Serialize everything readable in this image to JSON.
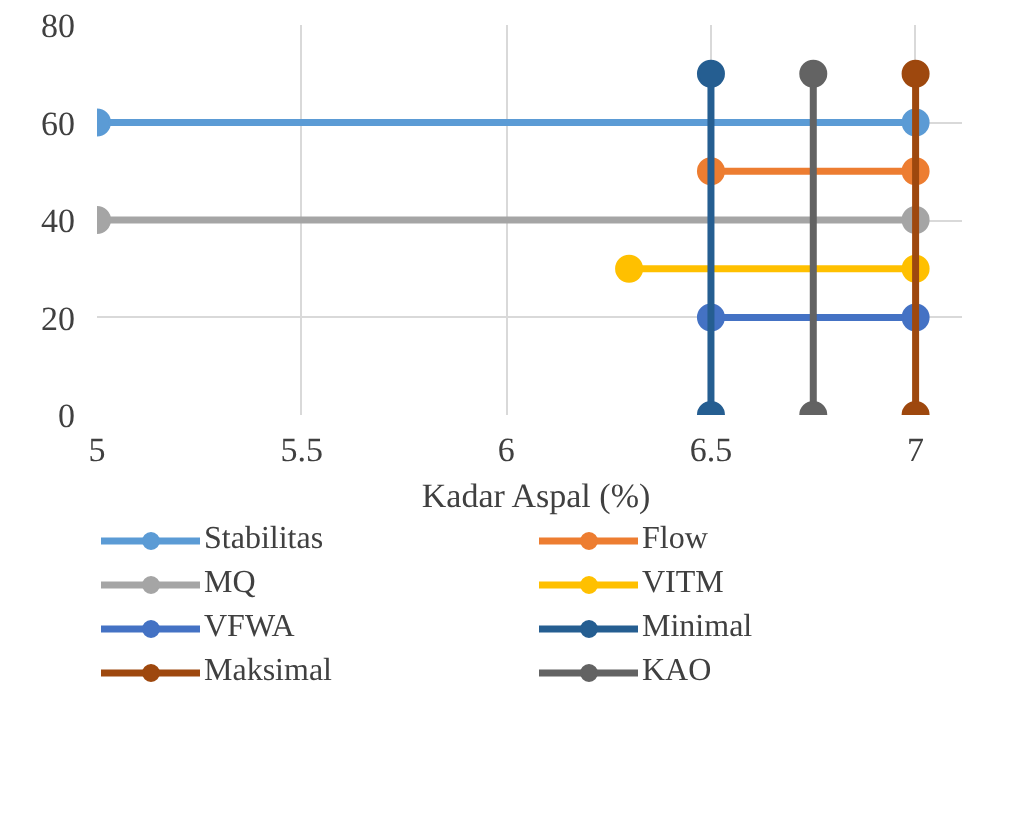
{
  "chart_data": {
    "type": "line",
    "xlabel": "Kadar Aspal (%)",
    "xlim": [
      5,
      7.15
    ],
    "xticks": [
      5,
      5.5,
      6,
      6.5,
      7
    ],
    "ylim": [
      0,
      80
    ],
    "yticks": [
      0,
      20,
      40,
      60,
      80
    ],
    "grid": true,
    "legend": "bottom",
    "marker": "circle",
    "line_style": "solid",
    "series": [
      {
        "name": "Stabilitas",
        "color": "#5b9bd5",
        "x": [
          5,
          7
        ],
        "values": [
          60,
          60
        ]
      },
      {
        "name": "Flow",
        "color": "#ed7d31",
        "x": [
          6.5,
          7
        ],
        "values": [
          50,
          50
        ]
      },
      {
        "name": "MQ",
        "color": "#a5a5a5",
        "x": [
          5,
          7
        ],
        "values": [
          40,
          40
        ]
      },
      {
        "name": "VITM",
        "color": "#ffc000",
        "x": [
          6.3,
          7
        ],
        "values": [
          30,
          30
        ]
      },
      {
        "name": "VFWA",
        "color": "#4472c4",
        "x": [
          6.5,
          7
        ],
        "values": [
          20,
          20
        ]
      },
      {
        "name": "Minimal",
        "color": "#255e91",
        "x": [
          6.5,
          6.5
        ],
        "values": [
          0,
          70
        ]
      },
      {
        "name": "Maksimal",
        "color": "#9e480e",
        "x": [
          7,
          7
        ],
        "values": [
          0,
          70
        ]
      },
      {
        "name": "KAO",
        "color": "#636363",
        "x": [
          6.75,
          6.75
        ],
        "values": [
          0,
          70
        ]
      }
    ]
  }
}
